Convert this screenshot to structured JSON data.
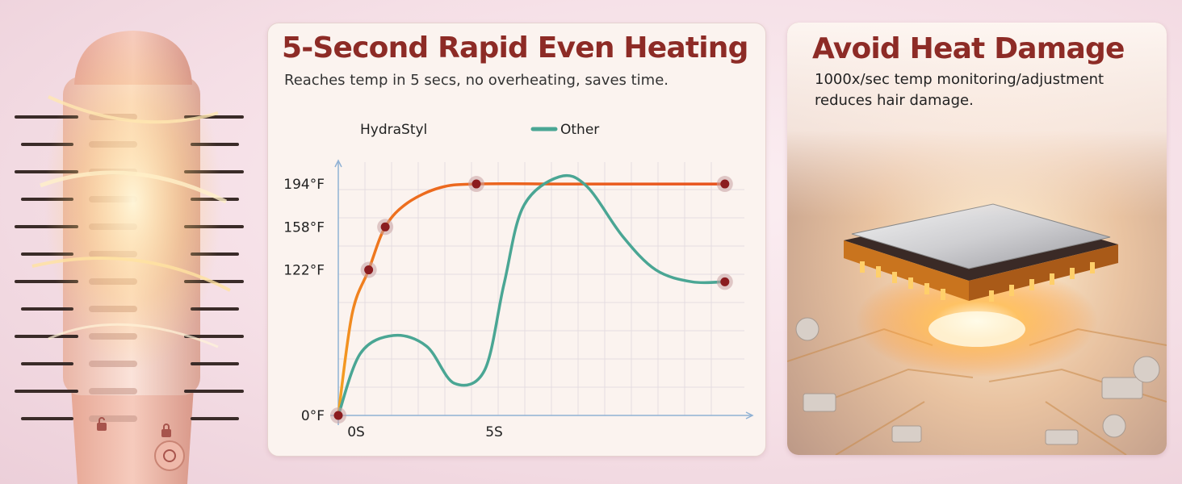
{
  "panels": {
    "heating": {
      "title": "5-Second Rapid Even Heating",
      "subtitle": "Reaches temp in 5 secs, no overheating, saves time."
    },
    "damage": {
      "title": "Avoid Heat Damage",
      "description": "1000x/sec temp monitoring/adjustment reduces hair damage."
    }
  },
  "chart_data": {
    "type": "line",
    "title": "5-Second Rapid Even Heating",
    "subtitle": "Reaches temp in 5 secs, no overheating, saves time.",
    "xlabel": "",
    "ylabel": "",
    "x_ticks": [
      {
        "x": 0,
        "label": "0S"
      },
      {
        "x": 5,
        "label": "5S"
      }
    ],
    "y_ticks": [
      {
        "y": 0,
        "label": "0°F"
      },
      {
        "y": 122,
        "label": "122°F"
      },
      {
        "y": 158,
        "label": "158°F"
      },
      {
        "y": 194,
        "label": "194°F"
      }
    ],
    "xlim": [
      0,
      15
    ],
    "ylim": [
      0,
      215
    ],
    "grid": true,
    "legend_position": "top-left",
    "series": [
      {
        "name": "HydraStyl",
        "color": "#e8521e",
        "color_start": "#f5a623",
        "points": [
          [
            0,
            0
          ],
          [
            0.5,
            85
          ],
          [
            1.1,
            122
          ],
          [
            1.7,
            158
          ],
          [
            2.5,
            178
          ],
          [
            3.7,
            191
          ],
          [
            5,
            194
          ],
          [
            8,
            194
          ],
          [
            11,
            194
          ],
          [
            14,
            194
          ]
        ],
        "markers": [
          [
            0,
            0
          ],
          [
            1.1,
            122
          ],
          [
            1.7,
            158
          ],
          [
            5,
            194
          ],
          [
            14,
            194
          ]
        ]
      },
      {
        "name": "Other",
        "color": "#4aa694",
        "points": [
          [
            0,
            0
          ],
          [
            0.8,
            52
          ],
          [
            2.0,
            67
          ],
          [
            3.2,
            58
          ],
          [
            4.2,
            27
          ],
          [
            5.3,
            38
          ],
          [
            6,
            110
          ],
          [
            6.7,
            175
          ],
          [
            8,
            200
          ],
          [
            9,
            192
          ],
          [
            10.3,
            150
          ],
          [
            11.5,
            122
          ],
          [
            12.8,
            112
          ],
          [
            14,
            112
          ]
        ],
        "markers": [
          [
            14,
            112
          ]
        ]
      }
    ]
  },
  "colors": {
    "title": "#8d2b26",
    "marker": "#8b1c1f",
    "axis": "#8fb1d4",
    "grid": "#e4dde0"
  },
  "icons": [
    "unlock-icon",
    "lock-icon",
    "power-button-icon",
    "microchip-illustration",
    "hair-brush-illustration"
  ]
}
